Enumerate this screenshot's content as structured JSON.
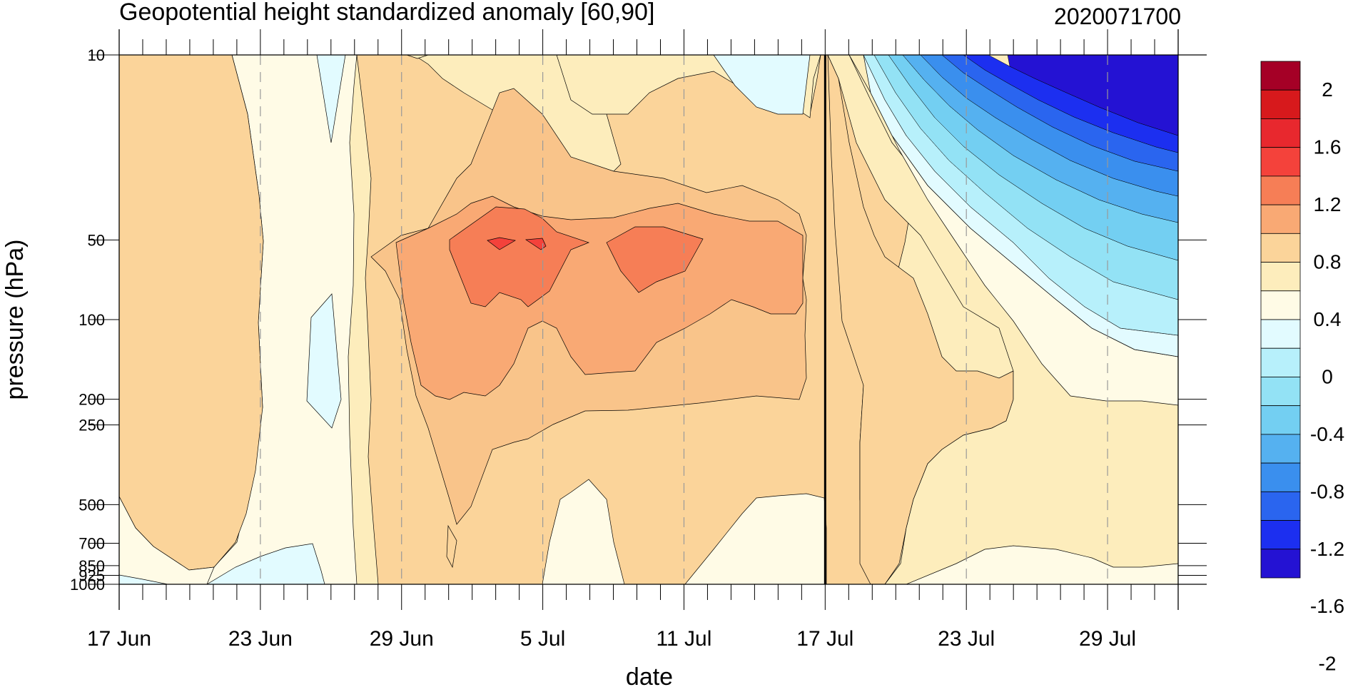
{
  "chart_data": {
    "type": "contour",
    "title": "Geopotential height standardized anomaly [60,90]",
    "date_label": "2020071700",
    "xlabel": "date",
    "ylabel": "pressure (hPa)",
    "x_range": [
      "2020-06-17",
      "2020-08-01"
    ],
    "x_ticks": [
      {
        "date": "2020-06-17",
        "label": "17 Jun"
      },
      {
        "date": "2020-06-23",
        "label": "23 Jun"
      },
      {
        "date": "2020-06-29",
        "label": "29 Jun"
      },
      {
        "date": "2020-07-05",
        "label": "5 Jul"
      },
      {
        "date": "2020-07-11",
        "label": "11 Jul"
      },
      {
        "date": "2020-07-17",
        "label": "17 Jul"
      },
      {
        "date": "2020-07-23",
        "label": "23 Jul"
      },
      {
        "date": "2020-07-29",
        "label": "29 Jul"
      }
    ],
    "y_scale": "log",
    "y_range": [
      1000,
      10
    ],
    "y_ticks": [
      10,
      50,
      100,
      200,
      250,
      500,
      700,
      850,
      925,
      1000
    ],
    "y_tick_labels": [
      "10",
      "50",
      "100",
      "200",
      "250",
      "500",
      "700",
      "850",
      "925",
      "1000"
    ],
    "forecast_start_date": "2020-07-17",
    "colorbar": {
      "labels": [
        "2",
        "1.6",
        "1.2",
        "0.8",
        "0.4",
        "0",
        "-0.4",
        "-0.8",
        "-1.2",
        "-1.6",
        "-2"
      ],
      "colors": [
        "#a50026",
        "#d7191c",
        "#e8282e",
        "#f4423b",
        "#f67e56",
        "#f9a974",
        "#fbd49a",
        "#fdedbc",
        "#fffbe6",
        "#e2fbff",
        "#b7f0fb",
        "#93e2f5",
        "#73cff2",
        "#55b1f0",
        "#3a8fee",
        "#2a65ef",
        "#1c2ff0",
        "#2412d3"
      ],
      "levels": [
        2.0,
        1.8,
        1.6,
        1.4,
        1.2,
        1.0,
        0.8,
        0.6,
        0.4,
        0.2,
        0.0,
        -0.2,
        -0.4,
        -0.6,
        -0.8,
        -1.0,
        -1.2,
        -1.4,
        -1.6,
        -1.8,
        -2.0
      ]
    },
    "regions": [
      {
        "level": "0 to 0.2",
        "color": "#fdedbc",
        "desc": "background near-neutral positive"
      },
      {
        "level": "0.2 to 0.4",
        "color": "#fbd49a",
        "desc": "17-22 Jun column"
      },
      {
        "level": "0.4 to 0.6",
        "color": "#fbd49a",
        "desc": "29 Jun - 21 Jul mid stratosphere"
      },
      {
        "level": "0.6 to 0.8",
        "color": "#f9c48a",
        "desc": "1-16 Jul 50-200 hPa"
      },
      {
        "level": "0.8 to 1.0",
        "color": "#f9a974",
        "desc": "3-12 Jul 50-100 hPa"
      },
      {
        "level": "1.0 to 1.2",
        "color": "#f67e56",
        "desc": "4-5 Jul 50 hPa"
      },
      {
        "level": "-0.2 to 0",
        "color": "#e2fbff",
        "desc": "negative pockets"
      },
      {
        "level": "-0.2 to -2+",
        "color": "#2412d3",
        "desc": "late Jul upper stratosphere strong negative"
      }
    ]
  }
}
